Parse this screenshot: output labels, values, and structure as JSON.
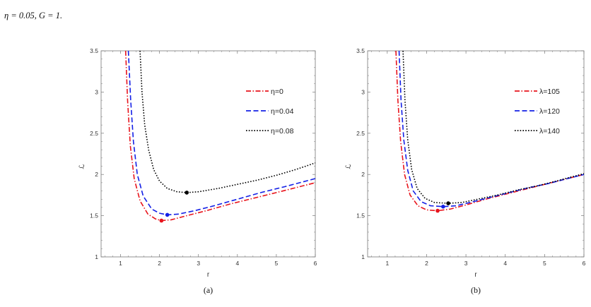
{
  "caption": {
    "line1": "",
    "line2": "η = 0.05, G = 1."
  },
  "colors": {
    "red": "#e8141c",
    "blue": "#1420e6",
    "black": "#000000",
    "frame": "#777777"
  },
  "chart_data": [
    {
      "type": "line",
      "panel_label": "(a)",
      "xlabel": "r",
      "ylabel": "ℒ",
      "xlim": [
        0.5,
        6
      ],
      "ylim": [
        1.0,
        3.5
      ],
      "xticks": [
        1,
        2,
        3,
        4,
        5,
        6
      ],
      "yticks": [
        1.0,
        1.5,
        2.0,
        2.5,
        3.0,
        3.5
      ],
      "grid": false,
      "legend_position": "top-right",
      "series": [
        {
          "name": "η=0",
          "color": "red",
          "style": "dashdot",
          "x": [
            1.13,
            1.18,
            1.25,
            1.35,
            1.5,
            1.7,
            1.9,
            2.05,
            2.3,
            2.7,
            3.2,
            3.8,
            4.4,
            5.0,
            5.5,
            6.0
          ],
          "y": [
            3.5,
            2.9,
            2.35,
            1.95,
            1.68,
            1.52,
            1.46,
            1.44,
            1.45,
            1.5,
            1.56,
            1.64,
            1.71,
            1.78,
            1.84,
            1.9
          ],
          "marker": {
            "x": 2.05,
            "y": 1.44
          }
        },
        {
          "name": "η=0.04",
          "color": "blue",
          "style": "dashed",
          "x": [
            1.2,
            1.26,
            1.33,
            1.43,
            1.58,
            1.8,
            2.0,
            2.2,
            2.5,
            2.9,
            3.4,
            4.0,
            4.6,
            5.2,
            5.6,
            6.0
          ],
          "y": [
            3.5,
            2.9,
            2.4,
            2.0,
            1.74,
            1.58,
            1.53,
            1.51,
            1.52,
            1.56,
            1.62,
            1.7,
            1.78,
            1.85,
            1.9,
            1.95
          ],
          "marker": {
            "x": 2.2,
            "y": 1.51
          }
        },
        {
          "name": "η=0.08",
          "color": "black",
          "style": "dotted",
          "x": [
            1.5,
            1.55,
            1.62,
            1.72,
            1.85,
            2.0,
            2.2,
            2.45,
            2.7,
            3.0,
            3.5,
            4.0,
            4.5,
            5.0,
            5.5,
            6.0
          ],
          "y": [
            3.5,
            3.0,
            2.6,
            2.3,
            2.06,
            1.92,
            1.83,
            1.79,
            1.78,
            1.79,
            1.83,
            1.88,
            1.93,
            1.99,
            2.06,
            2.14
          ],
          "marker": {
            "x": 2.7,
            "y": 1.78
          }
        }
      ]
    },
    {
      "type": "line",
      "panel_label": "(b)",
      "xlabel": "r",
      "ylabel": "ℒ",
      "xlim": [
        0.5,
        6
      ],
      "ylim": [
        1.0,
        3.5
      ],
      "xticks": [
        1,
        2,
        3,
        4,
        5,
        6
      ],
      "yticks": [
        1.0,
        1.5,
        2.0,
        2.5,
        3.0,
        3.5
      ],
      "grid": false,
      "legend_position": "top-right",
      "series": [
        {
          "name": "λ=105",
          "color": "red",
          "style": "dashdot",
          "x": [
            1.22,
            1.27,
            1.34,
            1.44,
            1.58,
            1.78,
            2.0,
            2.28,
            2.6,
            3.0,
            3.5,
            4.0,
            4.5,
            5.0,
            5.5,
            6.0
          ],
          "y": [
            3.5,
            2.9,
            2.4,
            2.0,
            1.75,
            1.62,
            1.57,
            1.56,
            1.58,
            1.63,
            1.7,
            1.76,
            1.82,
            1.88,
            1.94,
            2.0
          ],
          "marker": {
            "x": 2.28,
            "y": 1.56
          }
        },
        {
          "name": "λ=120",
          "color": "blue",
          "style": "dashed",
          "x": [
            1.3,
            1.35,
            1.42,
            1.52,
            1.66,
            1.86,
            2.1,
            2.42,
            2.75,
            3.1,
            3.6,
            4.1,
            4.6,
            5.1,
            5.5,
            6.0
          ],
          "y": [
            3.5,
            2.9,
            2.42,
            2.05,
            1.8,
            1.67,
            1.62,
            1.61,
            1.62,
            1.66,
            1.72,
            1.78,
            1.84,
            1.89,
            1.94,
            2.0
          ],
          "marker": {
            "x": 2.42,
            "y": 1.61
          }
        },
        {
          "name": "λ=140",
          "color": "black",
          "style": "dotted",
          "x": [
            1.4,
            1.45,
            1.52,
            1.62,
            1.76,
            1.96,
            2.2,
            2.55,
            2.9,
            3.3,
            3.8,
            4.3,
            4.8,
            5.3,
            5.6,
            6.0
          ],
          "y": [
            3.5,
            2.9,
            2.42,
            2.06,
            1.83,
            1.71,
            1.66,
            1.65,
            1.66,
            1.7,
            1.75,
            1.81,
            1.86,
            1.92,
            1.96,
            2.01
          ],
          "marker": {
            "x": 2.55,
            "y": 1.65
          }
        }
      ]
    }
  ]
}
